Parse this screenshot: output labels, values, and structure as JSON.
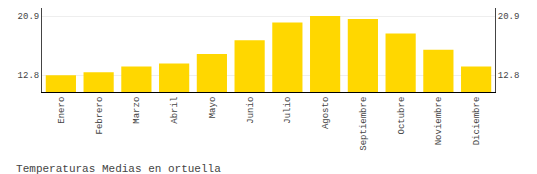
{
  "chart_data": {
    "type": "bar",
    "title": "Temperaturas Medias en ortuella",
    "categories": [
      "Enero",
      "Febrero",
      "Marzo",
      "Abril",
      "Mayo",
      "Junio",
      "Julio",
      "Agosto",
      "Septiembre",
      "Octubre",
      "Noviembre",
      "Diciembre"
    ],
    "values": [
      12.8,
      13.2,
      14.0,
      14.4,
      15.7,
      17.6,
      20.0,
      20.9,
      20.5,
      18.5,
      16.3,
      14.0
    ],
    "color": "#FFD700",
    "ylim": [
      10.5,
      22.0
    ],
    "yticks": [
      12.8,
      20.9
    ],
    "y2lim": [
      10.5,
      22.0
    ],
    "y2ticks": [
      12.8,
      20.9
    ],
    "grid": true
  }
}
